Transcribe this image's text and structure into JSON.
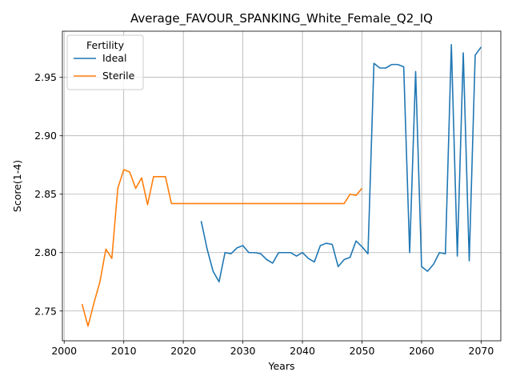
{
  "chart_data": {
    "type": "line",
    "title": "Average_FAVOUR_SPANKING_White_Female_Q2_IQ",
    "xlabel": "Years",
    "ylabel": "Score(1-4)",
    "xlim": [
      1999.7,
      2073.3
    ],
    "ylim": [
      2.7245,
      2.9895
    ],
    "xticks": [
      2000,
      2010,
      2020,
      2030,
      2040,
      2050,
      2060,
      2070
    ],
    "yticks": [
      2.75,
      2.8,
      2.85,
      2.9,
      2.95
    ],
    "ytick_labels": [
      "2.75",
      "2.80",
      "2.85",
      "2.90",
      "2.95"
    ],
    "grid": true,
    "legend": {
      "title": "Fertility",
      "placement": "top-left"
    },
    "series": [
      {
        "name": "Ideal",
        "color": "#1f77b4",
        "x": [
          2023,
          2024,
          2025,
          2026,
          2027,
          2028,
          2029,
          2030,
          2031,
          2032,
          2033,
          2034,
          2035,
          2036,
          2037,
          2038,
          2039,
          2040,
          2041,
          2042,
          2043,
          2044,
          2045,
          2046,
          2047,
          2048,
          2049,
          2050,
          2051,
          2052,
          2053,
          2054,
          2055,
          2056,
          2057,
          2058,
          2059,
          2060,
          2061,
          2062,
          2063,
          2064,
          2065,
          2066,
          2067,
          2068,
          2069,
          2070
        ],
        "y": [
          2.827,
          2.803,
          2.784,
          2.775,
          2.8,
          2.799,
          2.804,
          2.806,
          2.8,
          2.8,
          2.799,
          2.794,
          2.791,
          2.8,
          2.8,
          2.8,
          2.797,
          2.8,
          2.795,
          2.792,
          2.806,
          2.808,
          2.807,
          2.788,
          2.794,
          2.796,
          2.81,
          2.805,
          2.799,
          2.962,
          2.958,
          2.958,
          2.961,
          2.961,
          2.959,
          2.8,
          2.955,
          2.788,
          2.784,
          2.79,
          2.8,
          2.799,
          2.978,
          2.797,
          2.971,
          2.793,
          2.969,
          2.976
        ]
      },
      {
        "name": "Sterile",
        "color": "#ff7f0e",
        "x": [
          2003,
          2004,
          2005,
          2006,
          2007,
          2008,
          2009,
          2010,
          2011,
          2012,
          2013,
          2014,
          2015,
          2016,
          2017,
          2018,
          2019,
          2020,
          2021,
          2022,
          2023,
          2024,
          2025,
          2026,
          2027,
          2028,
          2029,
          2030,
          2031,
          2032,
          2033,
          2034,
          2035,
          2036,
          2037,
          2038,
          2039,
          2040,
          2041,
          2042,
          2043,
          2044,
          2045,
          2046,
          2047,
          2048,
          2049,
          2050
        ],
        "y": [
          2.756,
          2.737,
          2.757,
          2.775,
          2.803,
          2.795,
          2.855,
          2.871,
          2.869,
          2.855,
          2.864,
          2.841,
          2.865,
          2.865,
          2.865,
          2.842,
          2.842,
          2.842,
          2.842,
          2.842,
          2.842,
          2.842,
          2.842,
          2.842,
          2.842,
          2.842,
          2.842,
          2.842,
          2.842,
          2.842,
          2.842,
          2.842,
          2.842,
          2.842,
          2.842,
          2.842,
          2.842,
          2.842,
          2.842,
          2.842,
          2.842,
          2.842,
          2.842,
          2.842,
          2.842,
          2.85,
          2.849,
          2.855
        ]
      }
    ]
  }
}
